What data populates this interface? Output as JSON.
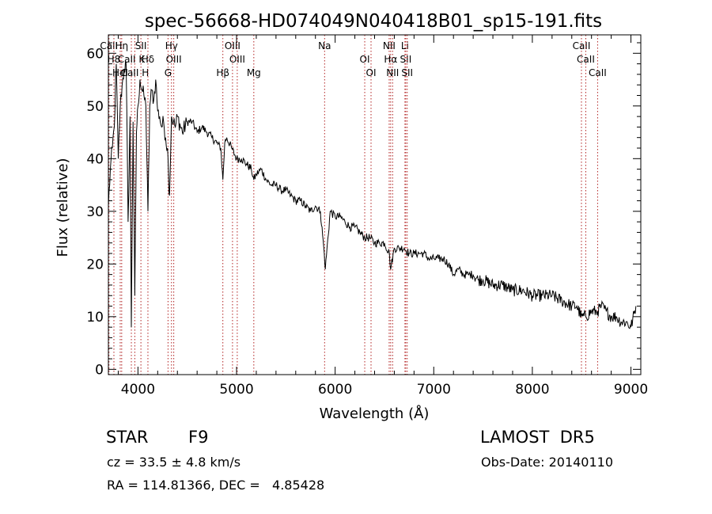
{
  "chart_data": {
    "type": "line",
    "title": "spec-56668-HD074049N040418B01_sp15-191.fits",
    "xlabel": "Wavelength (Å)",
    "ylabel": "Flux (relative)",
    "xlim": [
      3700,
      9100
    ],
    "ylim": [
      -1,
      63.5
    ],
    "xticks": [
      4000,
      5000,
      6000,
      7000,
      8000,
      9000
    ],
    "yticks": [
      0,
      10,
      20,
      30,
      40,
      50,
      60
    ],
    "grid": false,
    "series": [
      {
        "color": "#000000",
        "x": [
          3700,
          3720,
          3740,
          3760,
          3780,
          3800,
          3820,
          3840,
          3860,
          3880,
          3900,
          3920,
          3933,
          3950,
          3968,
          3985,
          4000,
          4020,
          4040,
          4060,
          4080,
          4101,
          4120,
          4140,
          4160,
          4180,
          4200,
          4220,
          4240,
          4260,
          4280,
          4300,
          4310,
          4320,
          4340,
          4360,
          4380,
          4400,
          4450,
          4500,
          4550,
          4600,
          4650,
          4700,
          4750,
          4800,
          4840,
          4861,
          4880,
          4900,
          4950,
          5000,
          5050,
          5100,
          5150,
          5175,
          5200,
          5250,
          5300,
          5350,
          5400,
          5450,
          5500,
          5550,
          5600,
          5650,
          5700,
          5750,
          5800,
          5850,
          5890,
          5900,
          5950,
          6000,
          6050,
          6100,
          6150,
          6200,
          6250,
          6300,
          6350,
          6400,
          6450,
          6500,
          6550,
          6563,
          6600,
          6650,
          6700,
          6750,
          6800,
          6850,
          6900,
          6950,
          7000,
          7050,
          7100,
          7150,
          7200,
          7250,
          7300,
          7350,
          7400,
          7450,
          7500,
          7600,
          7700,
          7800,
          7900,
          8000,
          8100,
          8200,
          8300,
          8400,
          8450,
          8498,
          8542,
          8600,
          8662,
          8700,
          8750,
          8800,
          8850,
          8900,
          8950,
          9000,
          9050
        ],
        "y": [
          31,
          38,
          42,
          46,
          58,
          40,
          50,
          54,
          57,
          58,
          28,
          48,
          8,
          47,
          14,
          45,
          50,
          55,
          53,
          52,
          50,
          30,
          50,
          53,
          51,
          55,
          49,
          48,
          46,
          47,
          44,
          42,
          37,
          33,
          48,
          47,
          46,
          48,
          45,
          47,
          47,
          45,
          46,
          45,
          44,
          43,
          42,
          36,
          43,
          44,
          42,
          40,
          40,
          39,
          38,
          36,
          37,
          38,
          36,
          35,
          35,
          34,
          34,
          33,
          32,
          32,
          31,
          30,
          31,
          30,
          22,
          19,
          30,
          29,
          29,
          28,
          27,
          27,
          26,
          25,
          25,
          24,
          24,
          24,
          22,
          19,
          23,
          23,
          23,
          22,
          22,
          22,
          22,
          21,
          21,
          21,
          21,
          20,
          18,
          19,
          18,
          18,
          18,
          17,
          17,
          16,
          16,
          15,
          15,
          14,
          14,
          14,
          13,
          12,
          12,
          10,
          10,
          11,
          11,
          12,
          11,
          10,
          10,
          9,
          9,
          8,
          12
        ]
      }
    ],
    "lines": [
      {
        "label": "CaII",
        "wave": 3706
      },
      {
        "label": "H8",
        "wave": 3756
      },
      {
        "label": "HeI",
        "wave": 3820
      },
      {
        "label": "Hη",
        "wave": 3835
      },
      {
        "label": "CaII K",
        "wave": 3933
      },
      {
        "label": "CaII H",
        "wave": 3968
      },
      {
        "label": "SII",
        "wave": 4030
      },
      {
        "label": "Hδ",
        "wave": 4101
      },
      {
        "label": "G",
        "wave": 4305
      },
      {
        "label": "Hγ",
        "wave": 4340
      },
      {
        "label": "OIII",
        "wave": 4363
      },
      {
        "label": "Hβ",
        "wave": 4861
      },
      {
        "label": "OIII",
        "wave": 4959
      },
      {
        "label": "OIII",
        "wave": 5007
      },
      {
        "label": "Mg",
        "wave": 5175
      },
      {
        "label": "Na",
        "wave": 5893
      },
      {
        "label": "OI",
        "wave": 6300
      },
      {
        "label": "OI",
        "wave": 6364
      },
      {
        "label": "NII",
        "wave": 6548
      },
      {
        "label": "Hα",
        "wave": 6563
      },
      {
        "label": "NII",
        "wave": 6583
      },
      {
        "label": "Li",
        "wave": 6708
      },
      {
        "label": "SII",
        "wave": 6716
      },
      {
        "label": "SII",
        "wave": 6731
      },
      {
        "label": "CaII",
        "wave": 8498
      },
      {
        "label": "CaII",
        "wave": 8542
      },
      {
        "label": "CaII",
        "wave": 8662
      }
    ]
  },
  "info": {
    "object_type": "STAR",
    "subclass": "F9",
    "cz": "cz = 33.5 ± 4.8 km/s",
    "coords": "RA = 114.81366, DEC =   4.85428",
    "survey": "LAMOST  DR5",
    "obs_date": "Obs-Date: 20140110"
  }
}
